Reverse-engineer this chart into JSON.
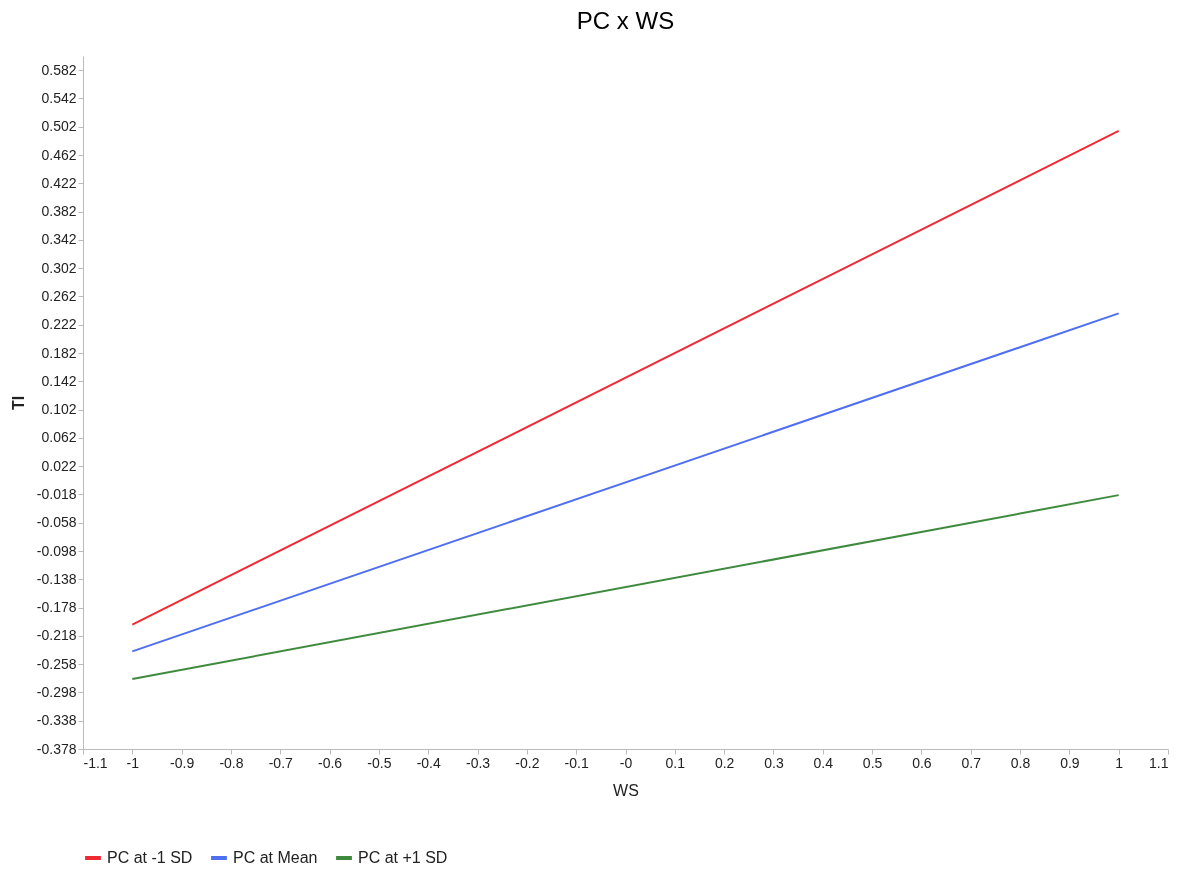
{
  "chart_data": {
    "type": "line",
    "title": "PC x WS",
    "xlabel": "WS",
    "ylabel": "TI",
    "x": [
      -1,
      1
    ],
    "series": [
      {
        "name": "PC at -1 SD",
        "color": "#ee2a33",
        "values": [
          -0.202,
          0.496
        ]
      },
      {
        "name": "PC at Mean",
        "color": "#4f6ff0",
        "values": [
          -0.24,
          0.238
        ]
      },
      {
        "name": "PC at +1 SD",
        "color": "#3f8a3f",
        "values": [
          -0.279,
          -0.019
        ]
      }
    ],
    "xlim": [
      -1.1,
      1.1
    ],
    "xticks": [
      -1.1,
      -1,
      -0.9,
      -0.8,
      -0.7,
      -0.6,
      -0.5,
      -0.4,
      -0.3,
      -0.2,
      -0.1,
      {
        "value": 0,
        "label": "-0"
      },
      0.1,
      0.2,
      0.3,
      0.4,
      0.5,
      0.6,
      0.7,
      0.8,
      0.9,
      1,
      1.1
    ],
    "ylim": [
      -0.378,
      0.602
    ],
    "yticks": [
      -0.378,
      -0.338,
      -0.298,
      -0.258,
      -0.218,
      -0.178,
      -0.138,
      -0.098,
      -0.058,
      -0.018,
      0.022,
      0.062,
      0.102,
      0.142,
      0.182,
      0.222,
      0.262,
      0.302,
      0.342,
      0.382,
      0.422,
      0.462,
      0.502,
      0.542,
      0.582
    ],
    "grid": false,
    "legend": "bottom",
    "marker": "none",
    "line_style": "solid"
  }
}
